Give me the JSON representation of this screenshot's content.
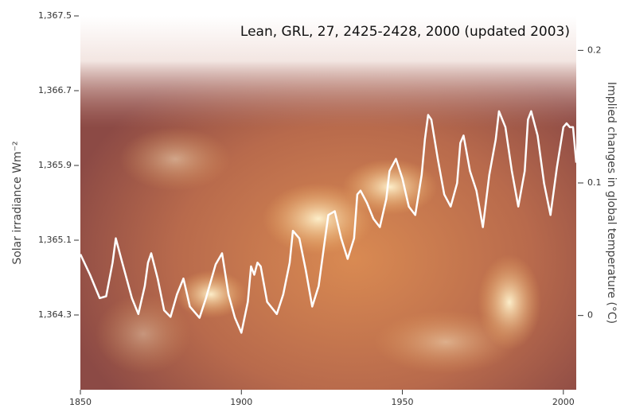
{
  "chart_data": {
    "type": "line",
    "annotation": "Lean, GRL, 27, 2425-2428, 2000 (updated 2003)",
    "y_label": "Solar irradiance Wm⁻²",
    "y2_label": "Implied changes in global temperature (°C)",
    "xlim": [
      1850,
      2004
    ],
    "xticks": [
      1850,
      1900,
      1950,
      2000
    ],
    "ylim": [
      1363.5,
      1367.5
    ],
    "yticks": [
      {
        "value": 1364.3,
        "label": "1,364.3"
      },
      {
        "value": 1365.1,
        "label": "1,365.1"
      },
      {
        "value": 1365.9,
        "label": "1,365.9"
      },
      {
        "value": 1366.7,
        "label": "1,366.7"
      },
      {
        "value": 1367.5,
        "label": "1,367.5"
      }
    ],
    "y2lim": [
      -0.056,
      0.226
    ],
    "y2ticks": [
      0,
      0.1,
      0.2
    ],
    "x": [
      1850,
      1853,
      1856,
      1858,
      1860,
      1861,
      1863,
      1866,
      1868,
      1870,
      1871,
      1872,
      1874,
      1876,
      1878,
      1880,
      1882,
      1884,
      1887,
      1889,
      1892,
      1894,
      1896,
      1898,
      1900,
      1902,
      1903,
      1904,
      1905,
      1906,
      1908,
      1911,
      1913,
      1915,
      1916,
      1918,
      1920,
      1922,
      1924,
      1926,
      1927,
      1929,
      1931,
      1933,
      1935,
      1936,
      1937,
      1939,
      1941,
      1943,
      1945,
      1946,
      1948,
      1950,
      1952,
      1954,
      1956,
      1957,
      1958,
      1959,
      1961,
      1963,
      1965,
      1967,
      1968,
      1969,
      1971,
      1973,
      1975,
      1977,
      1979,
      1980,
      1982,
      1984,
      1986,
      1988,
      1989,
      1990,
      1992,
      1994,
      1996,
      1998,
      2000,
      2001,
      2002,
      2003,
      2004
    ],
    "series": [
      {
        "color": "#ffffff",
        "values": [
          1364.95,
          1364.73,
          1364.48,
          1364.5,
          1364.86,
          1365.12,
          1364.86,
          1364.48,
          1364.31,
          1364.61,
          1364.86,
          1364.96,
          1364.69,
          1364.35,
          1364.28,
          1364.52,
          1364.69,
          1364.39,
          1364.27,
          1364.48,
          1364.84,
          1364.96,
          1364.52,
          1364.27,
          1364.11,
          1364.44,
          1364.82,
          1364.73,
          1364.86,
          1364.82,
          1364.44,
          1364.31,
          1364.52,
          1364.86,
          1365.2,
          1365.12,
          1364.78,
          1364.39,
          1364.61,
          1365.12,
          1365.37,
          1365.41,
          1365.12,
          1364.9,
          1365.12,
          1365.59,
          1365.63,
          1365.5,
          1365.33,
          1365.24,
          1365.54,
          1365.84,
          1365.97,
          1365.76,
          1365.46,
          1365.37,
          1365.8,
          1366.18,
          1366.44,
          1366.39,
          1365.97,
          1365.59,
          1365.46,
          1365.71,
          1366.14,
          1366.22,
          1365.84,
          1365.63,
          1365.24,
          1365.8,
          1366.18,
          1366.48,
          1366.31,
          1365.84,
          1365.46,
          1365.84,
          1366.39,
          1366.48,
          1366.22,
          1365.71,
          1365.37,
          1365.88,
          1366.31,
          1366.35,
          1366.31,
          1366.31,
          1365.93
        ]
      }
    ]
  }
}
